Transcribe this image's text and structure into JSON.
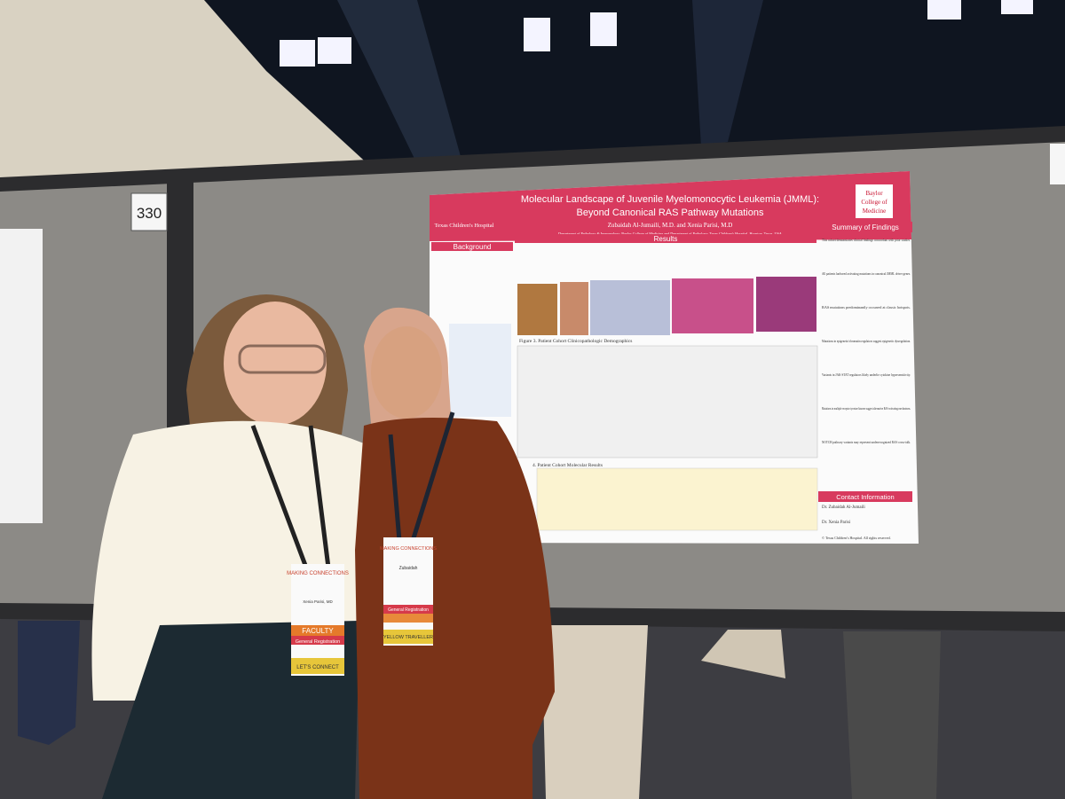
{
  "booth_number": "330",
  "poster": {
    "title_line1": "Molecular Landscape of Juvenile Myelomonocytic Leukemia (JMML):",
    "title_line2": "Beyond Canonical RAS Pathway Mutations",
    "authors": "Zubaidah Al-Jumaili, M.D. and Xenia Parisi, M.D",
    "affiliation": "Department of Pathology & Immunology, Baylor College of Medicine and Department of Pathology, Texas Children's Hospital, Houston, Texas, USA",
    "disclosure": "Authors have no relevant disclosures",
    "left_logo": "Texas Children's Hospital",
    "right_logo": [
      "Baylor",
      "College of",
      "Medicine"
    ],
    "background": "Background",
    "results": "Results",
    "summary": "Summary of Findings",
    "contact": "Contact Information",
    "figure3": "Figure 3. Patient Cohort Clinicopathologic Demographics",
    "figure4": "4. Patient Cohort Molecular Results",
    "summary_bullets": [
      "This cohort demonstrates clinical findings concordant with prior studies.",
      "All patients harbored activating mutations in canonical JMML driver genes.",
      "RAS mutations predominantly occurred at classic hotspots.",
      "Mutations in epigenetic/chromatin regulators suggest epigenetic dysregulation.",
      "Variants in JAK-STAT regulators likely underlie cytokine hypersensitivity.",
      "Mutations in multiple receptor tyrosine kinases suggest alternative RAS-activating mechanisms.",
      "NOTCH pathway variants may represent underrecognized RAS cross-talk."
    ],
    "contacts": [
      "Dr. Zubaidah Al-Jumaili",
      "Dr. Xenia Parisi"
    ],
    "copyright": "© Texas Children's Hospital. All rights reserved."
  },
  "badges": [
    {
      "event": "MAKING CONNECTIONS",
      "name": "Xenia Parisi, MD",
      "role": "FACULTY",
      "registration": "General Registration",
      "footer": "LET'S CONNECT"
    },
    {
      "event": "MAKING CONNECTIONS",
      "name": "Zubaidah",
      "registration": "General Registration",
      "footer": "YELLOW TRAVELLER"
    }
  ]
}
